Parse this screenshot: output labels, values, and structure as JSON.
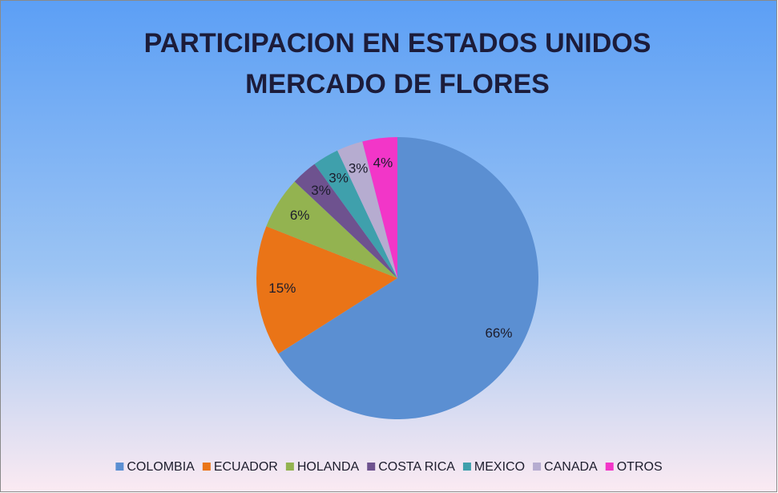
{
  "chart_data": {
    "type": "pie",
    "title": [
      "PARTICIPACION EN ESTADOS UNIDOS",
      "MERCADO DE FLORES"
    ],
    "categories": [
      "COLOMBIA",
      "ECUADOR",
      "HOLANDA",
      "COSTA RICA",
      "MEXICO",
      "CANADA",
      "OTROS"
    ],
    "values": [
      66,
      15,
      6,
      3,
      3,
      3,
      4
    ],
    "value_labels": [
      "66%",
      "15%",
      "6%",
      "3%",
      "3%",
      "3%",
      "4%"
    ],
    "colors": [
      "#5b8fd2",
      "#ea7417",
      "#93b350",
      "#6e528f",
      "#3fa0ac",
      "#b6acd0",
      "#f236c8"
    ],
    "legend": "bottom"
  }
}
